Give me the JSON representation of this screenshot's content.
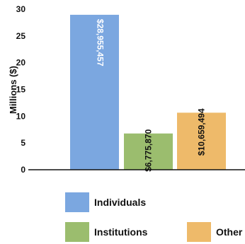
{
  "chart_data": {
    "type": "bar",
    "title": "",
    "xlabel": "",
    "ylabel": "Millions ($)",
    "ylim": [
      0,
      30
    ],
    "yticks": [
      0,
      5,
      10,
      15,
      20,
      25,
      30
    ],
    "grid": false,
    "legend_position": "bottom",
    "categories": [
      "Individuals",
      "Institutions",
      "Other"
    ],
    "values": [
      28.955457,
      6.77587,
      10.659494
    ],
    "data_labels": [
      "$28,955,457",
      "$6,775,870",
      "$10,659,494"
    ],
    "data_label_position": [
      "inside",
      "above",
      "above"
    ],
    "colors": [
      "#7ba7e0",
      "#9bbd6e",
      "#eeba6a"
    ]
  }
}
